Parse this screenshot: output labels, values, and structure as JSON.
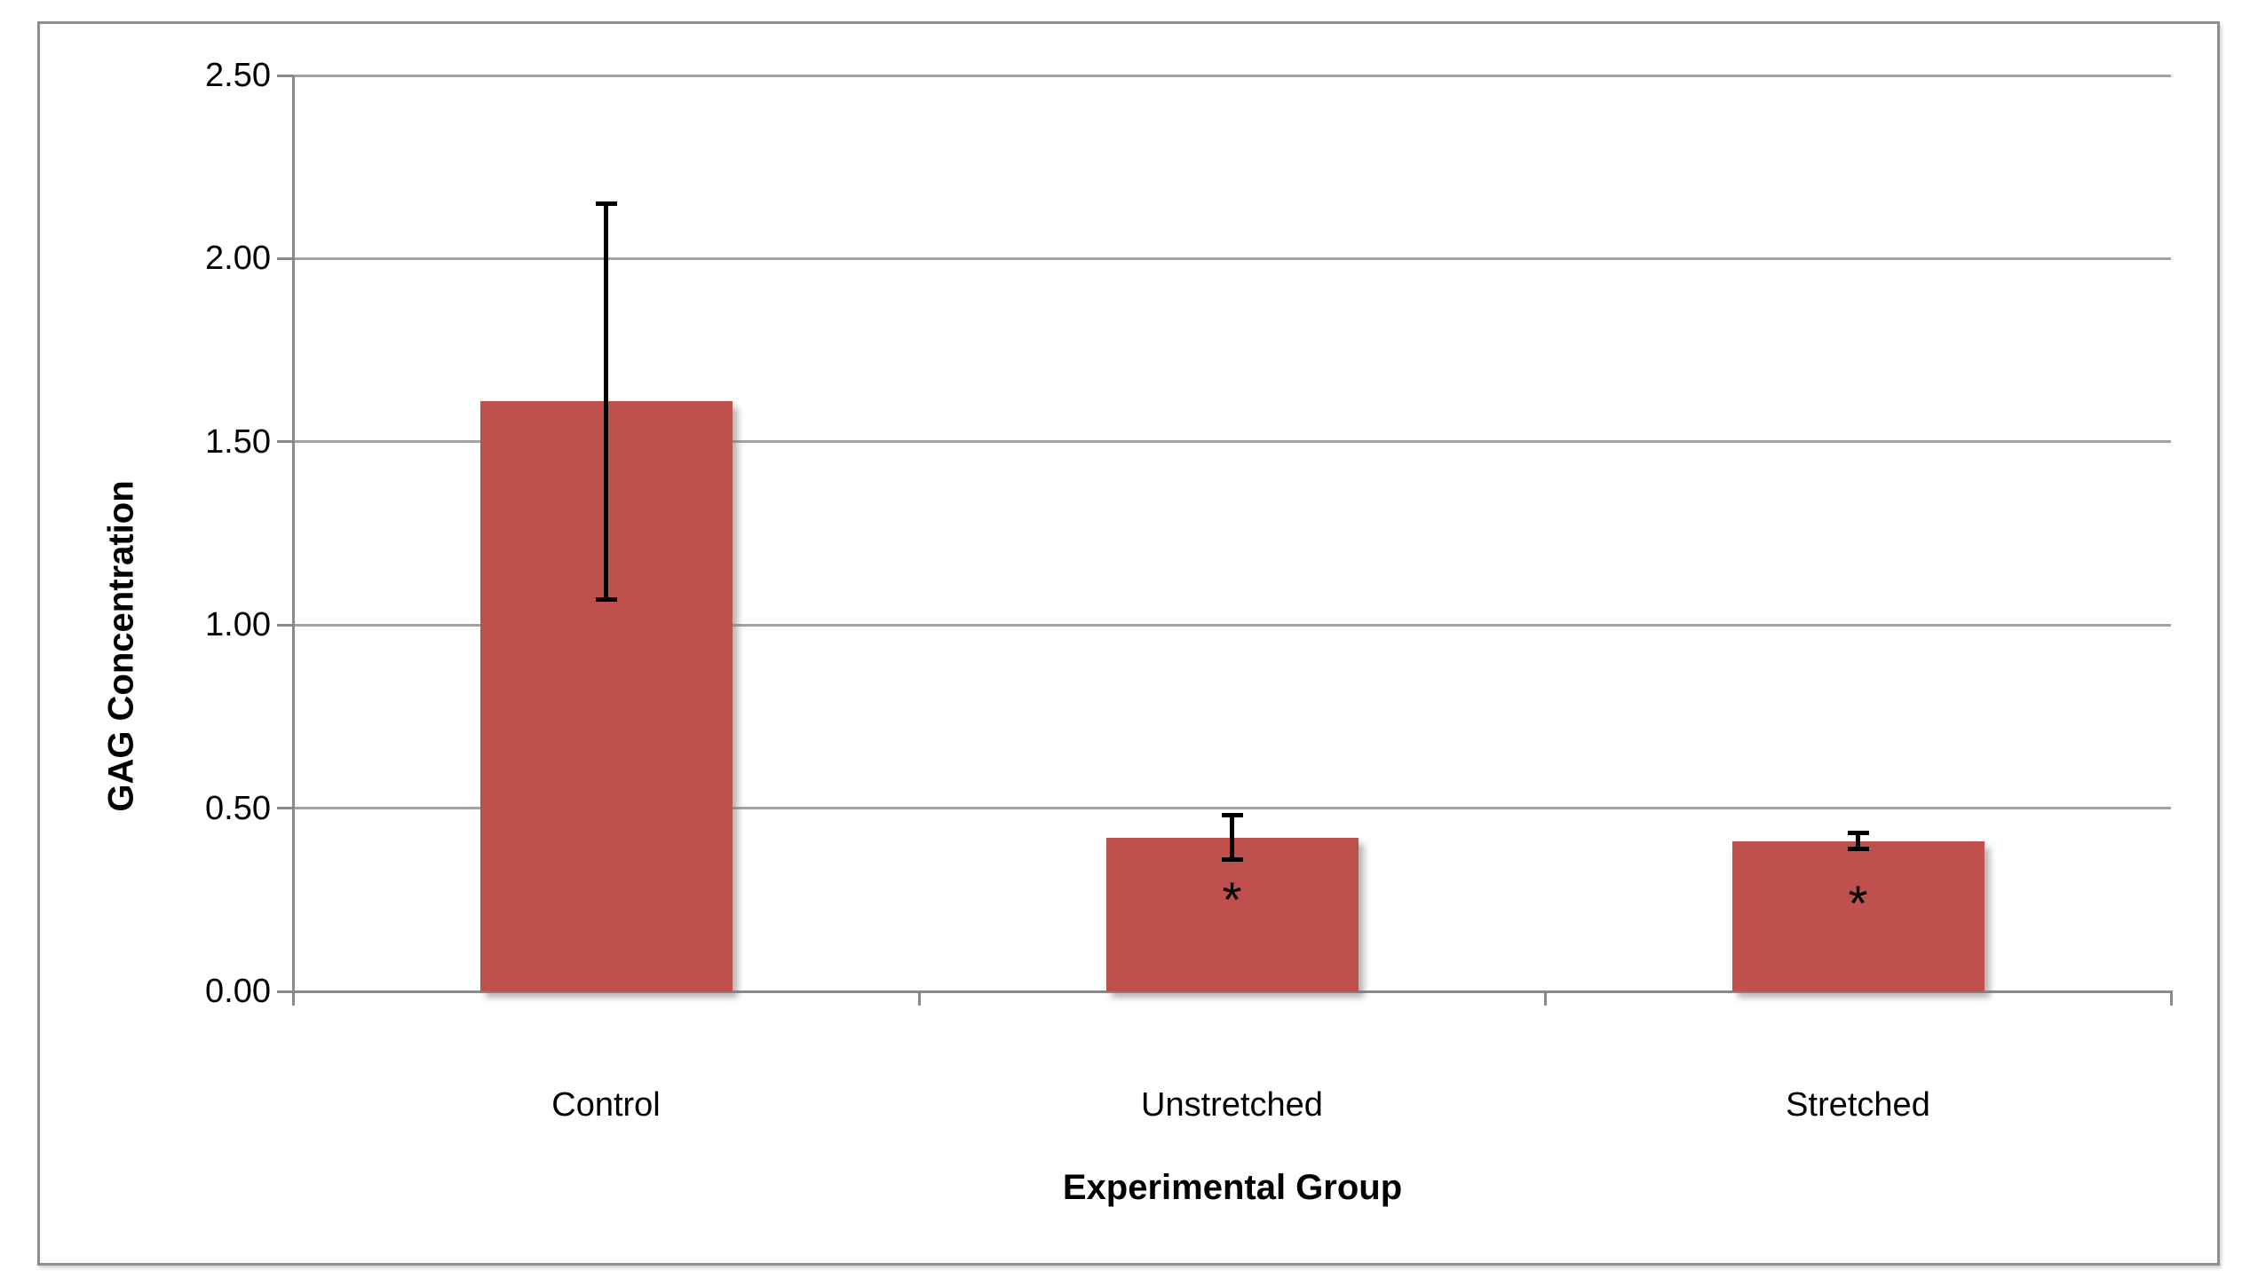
{
  "chart_data": {
    "type": "bar",
    "title": "",
    "categories": [
      "Control",
      "Unstretched",
      "Stretched"
    ],
    "values": [
      1.61,
      0.42,
      0.41
    ],
    "error_bars": [
      0.54,
      0.06,
      0.022
    ],
    "annotations": [
      "",
      "*",
      "*"
    ],
    "xlabel": "Experimental Group",
    "ylabel": "GAG Concentration",
    "ylim": [
      0,
      2.5
    ],
    "ytick_labels": [
      "0.00",
      "0.50",
      "1.00",
      "1.50",
      "2.00",
      "2.50"
    ],
    "grid": true,
    "legend": "none",
    "bar_color": "#C0504D",
    "gridline_color": "#a3a3a3",
    "axis_color": "#8a8a8a",
    "error_bar_color": "#000000",
    "text_color": "#000000"
  }
}
